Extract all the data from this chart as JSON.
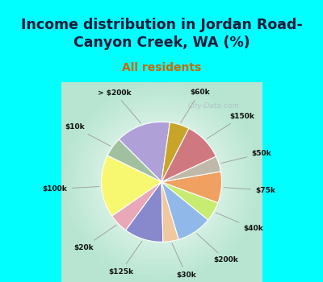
{
  "title": "Income distribution in Jordan Road-\nCanyon Creek, WA (%)",
  "subtitle": "All residents",
  "bg_color": "#00FFFF",
  "labels": [
    "> $200k",
    "$10k",
    "$100k",
    "$20k",
    "$125k",
    "$30k",
    "$200k",
    "$40k",
    "$75k",
    "$50k",
    "$150k",
    "$60k"
  ],
  "sizes": [
    14,
    5,
    16,
    5,
    10,
    4,
    9,
    5,
    8,
    4,
    10,
    5
  ],
  "colors": [
    "#b0a0d8",
    "#a0c0a0",
    "#f8f870",
    "#e8a8b8",
    "#8888cc",
    "#f0c8a0",
    "#90b8e8",
    "#c8ec70",
    "#f0a060",
    "#c0b8a8",
    "#d07880",
    "#c8a428"
  ],
  "startangle": 82,
  "watermark": "City-Data.com",
  "title_color": "#1a1a3a",
  "subtitle_color": "#cc6600",
  "title_fontsize": 12.5,
  "subtitle_fontsize": 10
}
